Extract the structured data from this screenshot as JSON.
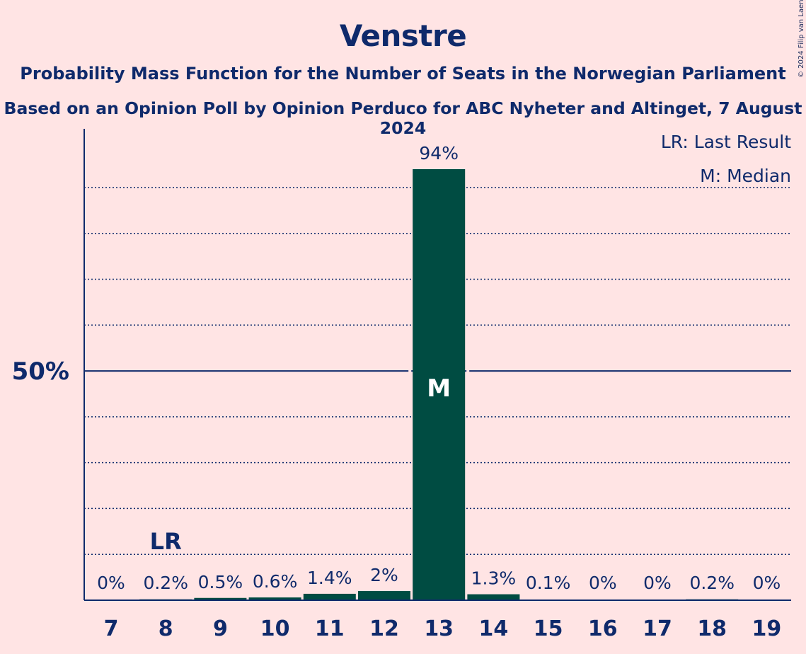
{
  "title": "Venstre",
  "subtitle1": "Probability Mass Function for the Number of Seats in the Norwegian Parliament",
  "subtitle2": "Based on an Opinion Poll by Opinion Perduco for ABC Nyheter and Altinget, 7 August 2024",
  "copyright": "© 2024 Filip van Laenen",
  "colors": {
    "background": "#ffe4e4",
    "bar": "#004c42",
    "text": "#0f2a6b"
  },
  "legend": {
    "last_result": "LR: Last Result",
    "median": "M: Median"
  },
  "chart_data": {
    "type": "bar",
    "categories": [
      "7",
      "8",
      "9",
      "10",
      "11",
      "12",
      "13",
      "14",
      "15",
      "16",
      "17",
      "18",
      "19"
    ],
    "values": [
      0,
      0.2,
      0.5,
      0.6,
      1.4,
      2,
      94,
      1.3,
      0.1,
      0,
      0,
      0.2,
      0
    ],
    "labels": [
      "0%",
      "0.2%",
      "0.5%",
      "0.6%",
      "1.4%",
      "2%",
      "94%",
      "1.3%",
      "0.1%",
      "0%",
      "0%",
      "0.2%",
      "0%"
    ],
    "ylim": [
      0,
      102
    ],
    "y_tick_label": "50%",
    "grid": "dotted every 10%, solid at 50%",
    "last_result_seat": "8",
    "last_result_marker": "LR",
    "median_seat": "13",
    "median_marker": "M",
    "legend_position": "top-right"
  }
}
